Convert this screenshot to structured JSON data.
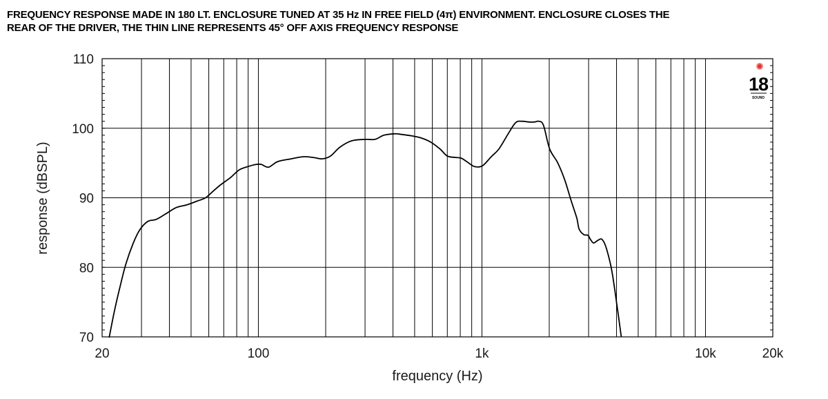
{
  "title": {
    "line1": "FREQUENCY RESPONSE MADE IN 180 LT. ENCLOSURE TUNED AT 35 Hz IN FREE FIELD (4π) ENVIRONMENT. ENCLOSURE CLOSES THE",
    "line2": "REAR OF THE DRIVER, THE THIN LINE REPRESENTS 45° OFF AXIS FREQUENCY RESPONSE"
  },
  "logo": {
    "text": "18",
    "subtext": "SOUND",
    "accent_color": "#e0302a"
  },
  "chart_data": {
    "type": "line",
    "xscale": "log",
    "xlim": [
      20,
      20000
    ],
    "ylim": [
      70,
      110
    ],
    "xlabel": "frequency (Hz)",
    "ylabel": "response (dBSPL)",
    "grid": true,
    "x_tick_labels": [
      {
        "value": 20,
        "label": "20"
      },
      {
        "value": 100,
        "label": "100"
      },
      {
        "value": 1000,
        "label": "1k"
      },
      {
        "value": 10000,
        "label": "10k"
      },
      {
        "value": 20000,
        "label": "20k"
      }
    ],
    "y_ticks": [
      70,
      80,
      90,
      100,
      110
    ],
    "series": [
      {
        "x": [
          21.5,
          22.7,
          24,
          25.5,
          27.5,
          29.5,
          32,
          35,
          39,
          43,
          48,
          53,
          58,
          63,
          68,
          75,
          82,
          90,
          98,
          103,
          111,
          122,
          140,
          158,
          176,
          193,
          210,
          232,
          262,
          302,
          332,
          365,
          408,
          438,
          485,
          535,
          590,
          650,
          700,
          763,
          808,
          855,
          925,
          1005,
          1100,
          1190,
          1305,
          1415,
          1515,
          1620,
          1720,
          1800,
          1885,
          2010,
          2185,
          2350,
          2505,
          2655,
          2720,
          2855,
          2980,
          3060,
          3160,
          3305,
          3450,
          3605,
          3810,
          4040,
          4200
        ],
        "y": [
          69.9,
          73.7,
          77.1,
          80.4,
          83.4,
          85.4,
          86.6,
          86.9,
          87.8,
          88.6,
          89.0,
          89.5,
          90.0,
          91.0,
          91.9,
          92.9,
          94.0,
          94.5,
          94.8,
          94.8,
          94.4,
          95.2,
          95.6,
          95.9,
          95.8,
          95.6,
          96.0,
          97.3,
          98.2,
          98.4,
          98.4,
          99.0,
          99.2,
          99.1,
          98.9,
          98.6,
          98.0,
          97.0,
          96.0,
          95.8,
          95.7,
          95.2,
          94.5,
          94.6,
          95.9,
          97.0,
          99.1,
          100.8,
          101.0,
          100.9,
          100.9,
          101.0,
          100.4,
          97.0,
          95.0,
          92.5,
          89.6,
          87.1,
          85.5,
          84.7,
          84.6,
          84.0,
          83.5,
          83.9,
          84.0,
          82.7,
          79.5,
          74.0,
          70.0
        ]
      }
    ]
  }
}
